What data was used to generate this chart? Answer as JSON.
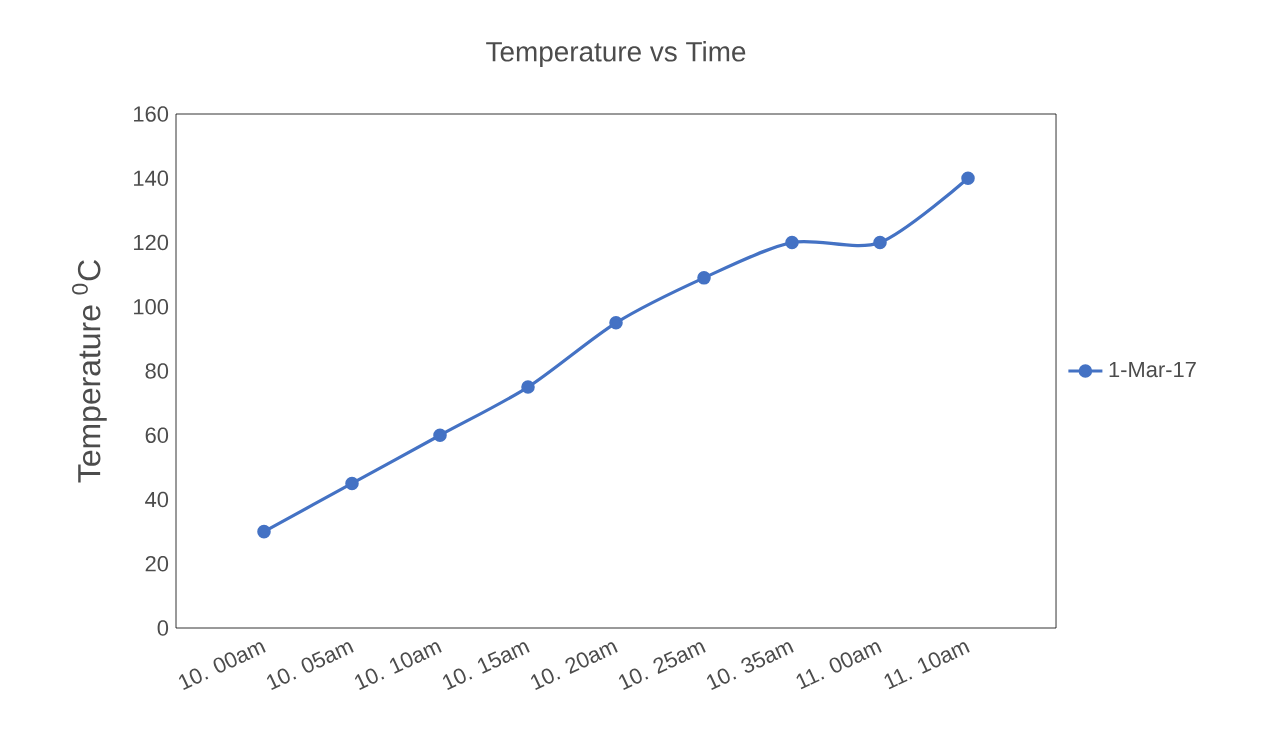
{
  "chart_data": {
    "type": "line",
    "title": "Temperature vs Time",
    "ylabel": "Temperature $^{0}$C",
    "categories": [
      "10. 00am",
      "10. 05am",
      "10. 10am",
      "10. 15am",
      "10. 20am",
      "10. 25am",
      "10. 35am",
      "11. 00am",
      "11. 10am"
    ],
    "series": [
      {
        "name": "1-Mar-17",
        "color": "#4472c4",
        "values": [
          30,
          45,
          60,
          75,
          95,
          109,
          120,
          120,
          140
        ]
      }
    ],
    "ylim": [
      0,
      160
    ],
    "yticks": [
      0,
      20,
      40,
      60,
      80,
      100,
      120,
      140,
      160
    ],
    "marker": "circle",
    "legend": "right",
    "grid": false
  }
}
